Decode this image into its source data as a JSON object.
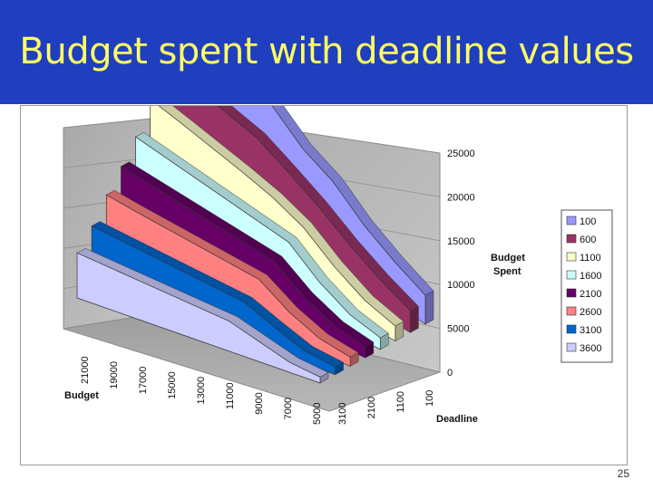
{
  "slide": {
    "title": "Budget spent with deadline values",
    "page_number": "25"
  },
  "chart_data": {
    "type": "area",
    "chart_style": "3d-stacked-ribbons",
    "title": "",
    "z_axis_label": "Budget Spent",
    "x_axis_label": "Budget",
    "y_axis_label": "Deadline",
    "z_ticks": [
      "0",
      "5000",
      "10000",
      "15000",
      "20000",
      "25000"
    ],
    "budget_ticks": [
      "21000",
      "19000",
      "17000",
      "15000",
      "13000",
      "11000",
      "9000",
      "7000",
      "5000"
    ],
    "deadline_ticks": [
      "100",
      "1100",
      "2100",
      "3100"
    ],
    "budget_values": [
      21000,
      19000,
      17000,
      15000,
      13000,
      11000,
      9000,
      7000,
      5000
    ],
    "z_range": [
      0,
      25000
    ],
    "grid": true,
    "legend_position": "right",
    "series": [
      {
        "name": "100",
        "color": "#9999ff",
        "values": [
          25000,
          24000,
          20000,
          18000,
          14500,
          12500,
          9000,
          6500,
          4500
        ]
      },
      {
        "name": "600",
        "color": "#993366",
        "values": [
          18600,
          17600,
          16800,
          15800,
          13500,
          11000,
          8000,
          5500,
          3500
        ]
      },
      {
        "name": "1100",
        "color": "#ffffcc",
        "values": [
          16500,
          15500,
          14400,
          13300,
          12000,
          10000,
          6500,
          3800,
          2500
        ]
      },
      {
        "name": "1600",
        "color": "#ccffff",
        "values": [
          14000,
          13200,
          12400,
          11600,
          10800,
          10000,
          6000,
          3200,
          2000
        ]
      },
      {
        "name": "2100",
        "color": "#660066",
        "values": [
          12800,
          12100,
          11400,
          10700,
          10000,
          9300,
          5500,
          3000,
          2000
        ]
      },
      {
        "name": "2600",
        "color": "#ff8080",
        "values": [
          11700,
          11000,
          10400,
          9800,
          9200,
          8600,
          5000,
          2600,
          1700
        ]
      },
      {
        "name": "3100",
        "color": "#0066cc",
        "values": [
          10000,
          9400,
          8800,
          8200,
          7600,
          7000,
          4500,
          2200,
          1500
        ]
      },
      {
        "name": "3600",
        "color": "#ccccff",
        "values": [
          9000,
          8400,
          7800,
          7200,
          6600,
          6000,
          4000,
          2000,
          1200
        ]
      }
    ]
  }
}
